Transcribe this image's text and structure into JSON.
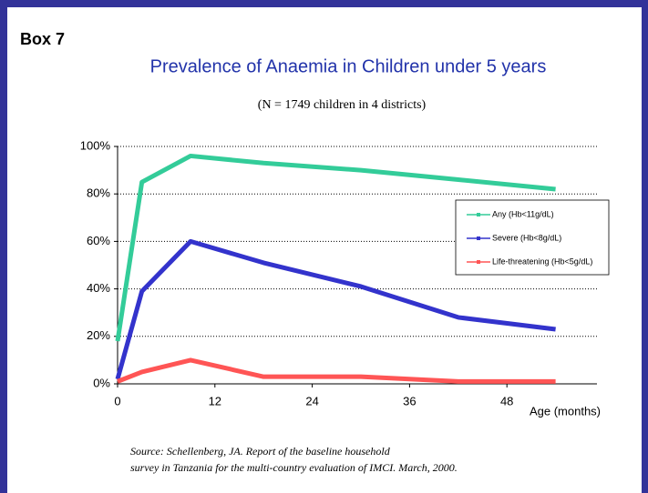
{
  "box_label": "Box 7",
  "chart_data": {
    "type": "line",
    "title": "Prevalence of Anaemia in Children under 5 years",
    "subtitle": "(N = 1749 children in 4 districts)",
    "x_label": "Age (months)",
    "x": [
      0,
      3,
      9,
      18,
      30,
      42,
      54
    ],
    "xlim": [
      0,
      60
    ],
    "xticks": [
      0,
      12,
      24,
      36,
      48
    ],
    "ylim": [
      0,
      100
    ],
    "yticks": [
      {
        "value": 0,
        "label": "0%"
      },
      {
        "value": 20,
        "label": "20%"
      },
      {
        "value": 40,
        "label": "40%"
      },
      {
        "value": 60,
        "label": "60%"
      },
      {
        "value": 80,
        "label": "80%"
      },
      {
        "value": 100,
        "label": "100%"
      }
    ],
    "grid": true,
    "legend": "right",
    "series": [
      {
        "name": "Any (Hb<11g/dL)",
        "color": "#33cc99",
        "values": [
          18,
          85,
          96,
          93,
          90,
          86,
          82
        ]
      },
      {
        "name": "Severe (Hb<8g/dL)",
        "color": "#3333cc",
        "values": [
          2,
          39,
          60,
          51,
          41,
          28,
          23
        ]
      },
      {
        "name": "Life-threatening (Hb<5g/dL)",
        "color": "#ff5555",
        "values": [
          1,
          5,
          10,
          3,
          3,
          1,
          1
        ]
      }
    ]
  },
  "source": [
    "Source:  Schellenberg, JA.  Report of the baseline household",
    "survey in Tanzania for the multi-country evaluation of IMCI.  March, 2000."
  ]
}
